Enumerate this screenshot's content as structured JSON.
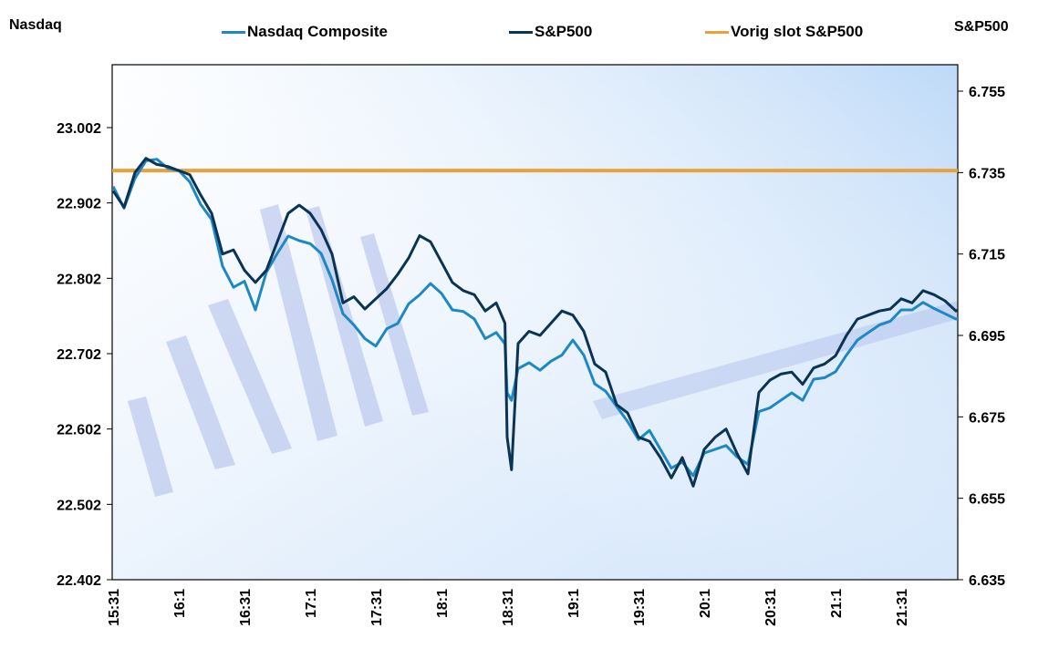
{
  "chart_data": {
    "type": "line",
    "title": "",
    "legend": {
      "placement": "top",
      "entries": [
        "Nasdaq Composite",
        "S&P500",
        "Vorig slot S&P500"
      ]
    },
    "left_axis": {
      "label": "Nasdaq",
      "ylim": [
        22.402,
        23.102
      ],
      "ticks": [
        "22.402",
        "22.502",
        "22.602",
        "22.702",
        "22.802",
        "22.902",
        "23.002"
      ],
      "tick_values": [
        22.402,
        22.502,
        22.602,
        22.702,
        22.802,
        22.902,
        23.002
      ]
    },
    "right_axis": {
      "label": "S&P500",
      "ylim": [
        6.635,
        6.762
      ],
      "ticks": [
        "6.635",
        "6.655",
        "6.675",
        "6.695",
        "6.715",
        "6.735",
        "6.755"
      ],
      "tick_values": [
        6.635,
        6.655,
        6.675,
        6.695,
        6.715,
        6.735,
        6.755
      ]
    },
    "x_axis": {
      "label": "",
      "start_minute": 931,
      "end_minute": 1325,
      "ticks": [
        "15:31",
        "16:1",
        "16:31",
        "17:1",
        "17:31",
        "18:1",
        "18:31",
        "19:1",
        "19:31",
        "20:1",
        "20:31",
        "21:1",
        "21:31"
      ],
      "tick_minutes": [
        931,
        961,
        991,
        1021,
        1051,
        1081,
        1111,
        1141,
        1171,
        1201,
        1231,
        1261,
        1291
      ]
    },
    "x_minutes": [
      931,
      936,
      941,
      946,
      951,
      956,
      961,
      966,
      971,
      976,
      981,
      986,
      991,
      996,
      1001,
      1006,
      1011,
      1016,
      1021,
      1026,
      1031,
      1036,
      1041,
      1046,
      1051,
      1056,
      1061,
      1066,
      1071,
      1076,
      1081,
      1086,
      1091,
      1096,
      1101,
      1106,
      1110,
      1111,
      1113,
      1116,
      1121,
      1126,
      1131,
      1136,
      1141,
      1146,
      1151,
      1156,
      1161,
      1166,
      1171,
      1176,
      1181,
      1186,
      1191,
      1196,
      1201,
      1206,
      1211,
      1216,
      1221,
      1226,
      1231,
      1236,
      1241,
      1246,
      1251,
      1256,
      1261,
      1266,
      1271,
      1276,
      1281,
      1286,
      1291,
      1296,
      1301,
      1306,
      1311,
      1316,
      1321,
      1325
    ],
    "series": [
      {
        "name": "Nasdaq Composite",
        "axis": "left",
        "color": "#1E88C4",
        "values": [
          22.924,
          22.895,
          22.935,
          22.958,
          22.96,
          22.948,
          22.945,
          22.93,
          22.9,
          22.88,
          22.818,
          22.79,
          22.798,
          22.76,
          22.81,
          22.835,
          22.858,
          22.852,
          22.848,
          22.835,
          22.8,
          22.755,
          22.74,
          22.722,
          22.712,
          22.735,
          22.742,
          22.768,
          22.78,
          22.795,
          22.782,
          22.76,
          22.758,
          22.748,
          22.722,
          22.73,
          22.715,
          22.65,
          22.64,
          22.682,
          22.69,
          22.68,
          22.692,
          22.7,
          22.72,
          22.7,
          22.662,
          22.652,
          22.632,
          22.612,
          22.588,
          22.6,
          22.575,
          22.55,
          22.558,
          22.54,
          22.57,
          22.575,
          22.58,
          22.565,
          22.555,
          22.625,
          22.63,
          22.64,
          22.65,
          22.64,
          22.668,
          22.67,
          22.678,
          22.7,
          22.72,
          22.73,
          22.74,
          22.745,
          22.76,
          22.76,
          22.77,
          22.762,
          22.755,
          22.748,
          22.752,
          22.758
        ]
      },
      {
        "name": "S&P500",
        "axis": "right",
        "color": "#0B3454",
        "values": [
          6.7305,
          6.7265,
          6.735,
          6.7385,
          6.737,
          6.7365,
          6.7355,
          6.7345,
          6.7295,
          6.725,
          6.715,
          6.716,
          6.711,
          6.708,
          6.711,
          6.718,
          6.725,
          6.727,
          6.725,
          6.721,
          6.715,
          6.703,
          6.7045,
          6.7015,
          6.704,
          6.7065,
          6.71,
          6.714,
          6.7195,
          6.718,
          6.713,
          6.708,
          6.706,
          6.705,
          6.701,
          6.703,
          6.698,
          6.67,
          6.662,
          6.693,
          6.696,
          6.695,
          6.698,
          6.701,
          6.7,
          6.696,
          6.688,
          6.686,
          6.678,
          6.676,
          6.67,
          6.669,
          6.665,
          6.66,
          6.665,
          6.658,
          6.667,
          6.67,
          6.672,
          6.666,
          6.661,
          6.681,
          6.684,
          6.6855,
          6.686,
          6.683,
          6.687,
          6.688,
          6.69,
          6.695,
          6.699,
          6.7,
          6.701,
          6.7015,
          6.704,
          6.703,
          6.706,
          6.705,
          6.7035,
          6.701,
          6.7025,
          6.703
        ]
      },
      {
        "name": "Vorig slot S&P500",
        "axis": "right",
        "color": "#E9A23B",
        "values": [
          6.7355,
          6.7355
        ]
      }
    ],
    "grid": false
  }
}
